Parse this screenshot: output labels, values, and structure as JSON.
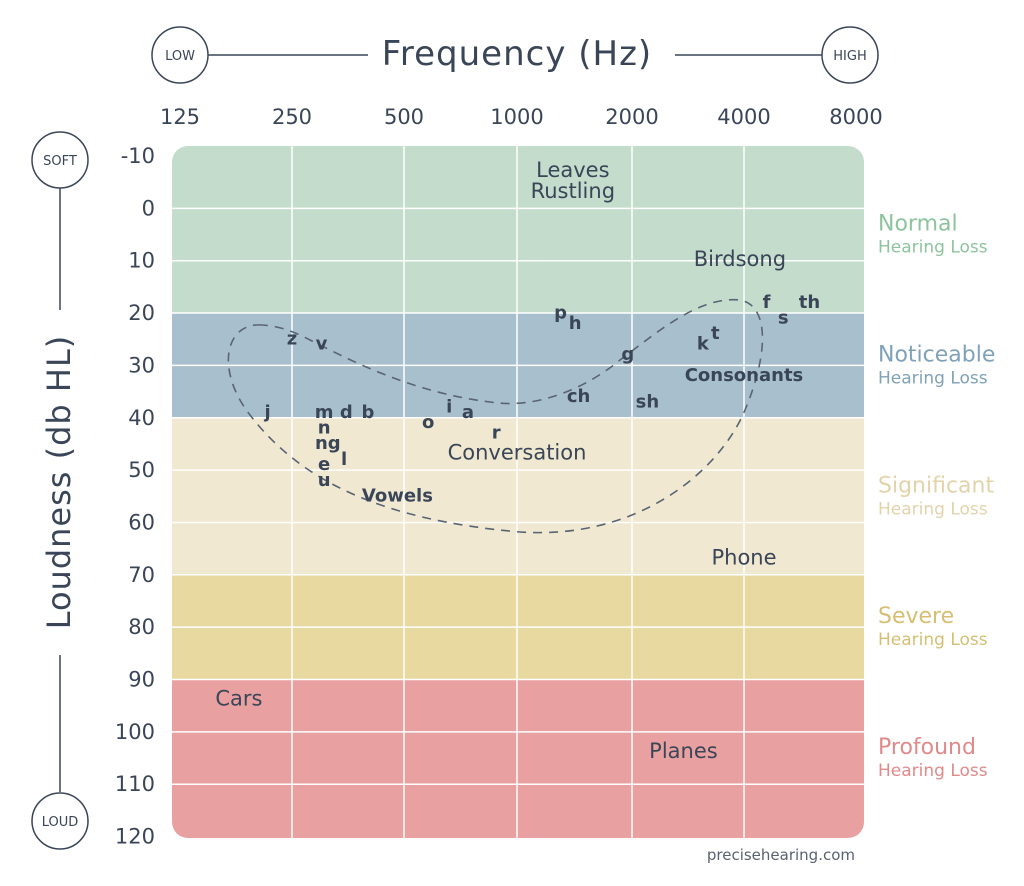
{
  "chart_data": {
    "type": "heatmap",
    "title": "Frequency (Hz)",
    "xlabel": "Frequency (Hz)",
    "ylabel": "Loudness (db HL)",
    "x_ticks": [
      "125",
      "250",
      "500",
      "1000",
      "2000",
      "4000",
      "8000"
    ],
    "x_scale": "log2",
    "xlim_hz": [
      125,
      8000
    ],
    "y_ticks": [
      -10,
      0,
      10,
      20,
      30,
      40,
      50,
      60,
      70,
      80,
      90,
      100,
      110,
      120
    ],
    "ylim": [
      -10,
      120
    ],
    "y_inverted": true,
    "grid": true,
    "x_end_labels": {
      "low": "LOW",
      "high": "HIGH"
    },
    "y_end_labels": {
      "soft": "SOFT",
      "loud": "LOUD"
    },
    "regions": [
      {
        "name": "Normal",
        "sub": "Hearing Loss",
        "from": -10,
        "to": 20,
        "color": "#c4dccb",
        "text_color": "#8ec49d"
      },
      {
        "name": "Noticeable",
        "sub": "Hearing Loss",
        "from": 20,
        "to": 40,
        "color": "#a8bfcd",
        "text_color": "#7fa2b8"
      },
      {
        "name": "Significant",
        "sub": "Hearing Loss",
        "from": 40,
        "to": 70,
        "color": "#f0e8d0",
        "text_color": "#e2d3aa"
      },
      {
        "name": "Severe",
        "sub": "Hearing Loss",
        "from": 70,
        "to": 90,
        "color": "#e8d9a0",
        "text_color": "#d6bf72"
      },
      {
        "name": "Profound",
        "sub": "Hearing Loss",
        "from": 90,
        "to": 120,
        "color": "#e8a0a0",
        "text_color": "#e08a8a"
      }
    ],
    "sound_labels": [
      {
        "text": "Leaves",
        "hz": 1400,
        "db": -6
      },
      {
        "text": "Rustling",
        "hz": 1400,
        "db": -2
      },
      {
        "text": "Birdsong",
        "hz": 3900,
        "db": 11
      },
      {
        "text": "Conversation",
        "hz": 1000,
        "db": 48
      },
      {
        "text": "Phone",
        "hz": 4000,
        "db": 68
      },
      {
        "text": "Cars",
        "hz": 180,
        "db": 95
      },
      {
        "text": "Planes",
        "hz": 2750,
        "db": 105
      },
      {
        "text": "Consonants",
        "hz": 4000,
        "db": 33
      },
      {
        "text": "Vowels",
        "hz": 480,
        "db": 56
      }
    ],
    "speech_sounds": [
      {
        "text": "f",
        "hz": 4600,
        "db": 19
      },
      {
        "text": "s",
        "hz": 5100,
        "db": 22
      },
      {
        "text": "th",
        "hz": 6000,
        "db": 19
      },
      {
        "text": "p",
        "hz": 1300,
        "db": 21
      },
      {
        "text": "h",
        "hz": 1420,
        "db": 23
      },
      {
        "text": "k",
        "hz": 3100,
        "db": 27
      },
      {
        "text": "t",
        "hz": 3350,
        "db": 25
      },
      {
        "text": "g",
        "hz": 1950,
        "db": 29
      },
      {
        "text": "z",
        "hz": 250,
        "db": 26
      },
      {
        "text": "v",
        "hz": 300,
        "db": 27
      },
      {
        "text": "ch",
        "hz": 1450,
        "db": 37
      },
      {
        "text": "sh",
        "hz": 2200,
        "db": 38
      },
      {
        "text": "j",
        "hz": 215,
        "db": 40
      },
      {
        "text": "m",
        "hz": 305,
        "db": 40
      },
      {
        "text": "d",
        "hz": 350,
        "db": 40
      },
      {
        "text": "b",
        "hz": 400,
        "db": 40
      },
      {
        "text": "o",
        "hz": 580,
        "db": 42
      },
      {
        "text": "i",
        "hz": 660,
        "db": 39
      },
      {
        "text": "a",
        "hz": 740,
        "db": 40
      },
      {
        "text": "r",
        "hz": 880,
        "db": 44
      },
      {
        "text": "n",
        "hz": 305,
        "db": 43
      },
      {
        "text": "ng",
        "hz": 312,
        "db": 46
      },
      {
        "text": "e",
        "hz": 305,
        "db": 50
      },
      {
        "text": "l",
        "hz": 345,
        "db": 49
      },
      {
        "text": "u",
        "hz": 305,
        "db": 53
      }
    ]
  },
  "source": "precisehearing.com"
}
